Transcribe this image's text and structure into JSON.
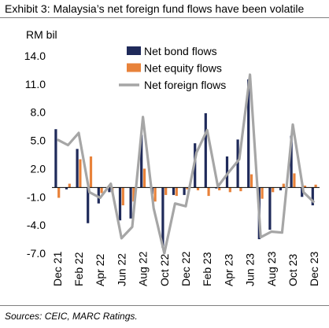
{
  "exhibit_title": "Exhibit 3: Malaysia’s net foreign fund flows have been volatile",
  "source": "Sources: CEIC, MARC Ratings.",
  "chart_data": {
    "type": "bar",
    "ylabel": "RM bil",
    "ylim": [
      -7.0,
      14.0
    ],
    "yticks": [
      "14.0",
      "11.0",
      "8.0",
      "5.0",
      "2.0",
      "-1.0",
      "-4.0",
      "-7.0"
    ],
    "ytick_values": [
      14,
      11,
      8,
      5,
      2,
      -1,
      -4,
      -7
    ],
    "categories": [
      "Dec 21",
      "Jan 22",
      "Feb 22",
      "Mar 22",
      "Apr 22",
      "May 22",
      "Jun 22",
      "Jul 22",
      "Aug 22",
      "Sep 22",
      "Oct 22",
      "Nov 22",
      "Dec 22",
      "Jan 23",
      "Feb 23",
      "Mar 23",
      "Apr 23",
      "May 23",
      "Jun 23",
      "Jul 23",
      "Aug 23",
      "Sep 23",
      "Oct 23",
      "Nov 23",
      "Dec 23"
    ],
    "xtick_labels": [
      "Dec 21",
      "Feb 22",
      "Apr 22",
      "Jun 22",
      "Aug 22",
      "Oct 22",
      "Dec 22",
      "Feb 23",
      "Apr 23",
      "Jun 23",
      "Aug 23",
      "Oct 23",
      "Dec 23"
    ],
    "series": [
      {
        "name": "Net bond flows",
        "kind": "bar",
        "color": "#1f2a5a",
        "values": [
          6.2,
          -0.2,
          4.1,
          -3.8,
          -1.7,
          -0.5,
          -3.5,
          -3.3,
          5.6,
          -0.7,
          -6.4,
          -0.8,
          -0.8,
          4.7,
          7.9,
          -0.1,
          3.3,
          5.1,
          11.5,
          -5.5,
          -4.5,
          -0.3,
          5.5,
          -1.0,
          -1.9
        ]
      },
      {
        "name": "Net equity flows",
        "kind": "bar",
        "color": "#e8823a",
        "values": [
          -1.1,
          0.4,
          3.0,
          3.3,
          -0.6,
          -0.5,
          -1.9,
          -1.5,
          2.0,
          -1.5,
          -0.8,
          -0.9,
          -0.2,
          -0.3,
          -0.9,
          -0.3,
          -0.5,
          -0.4,
          1.4,
          -1.2,
          -0.5,
          0.4,
          1.5,
          0.2,
          0.3
        ]
      },
      {
        "name": "Net foreign flows",
        "kind": "line",
        "color": "#a6a6a6",
        "values": [
          5.1,
          4.5,
          5.8,
          -0.5,
          -1.1,
          0.4,
          -5.4,
          -4.2,
          7.5,
          -2.2,
          -7.0,
          -1.7,
          -2.0,
          3.7,
          6.1,
          0.1,
          1.6,
          3.0,
          12.0,
          -5.3,
          -4.7,
          -4.8,
          6.7,
          -0.5,
          -1.6
        ]
      }
    ],
    "legend": "top-right",
    "grid": false
  }
}
